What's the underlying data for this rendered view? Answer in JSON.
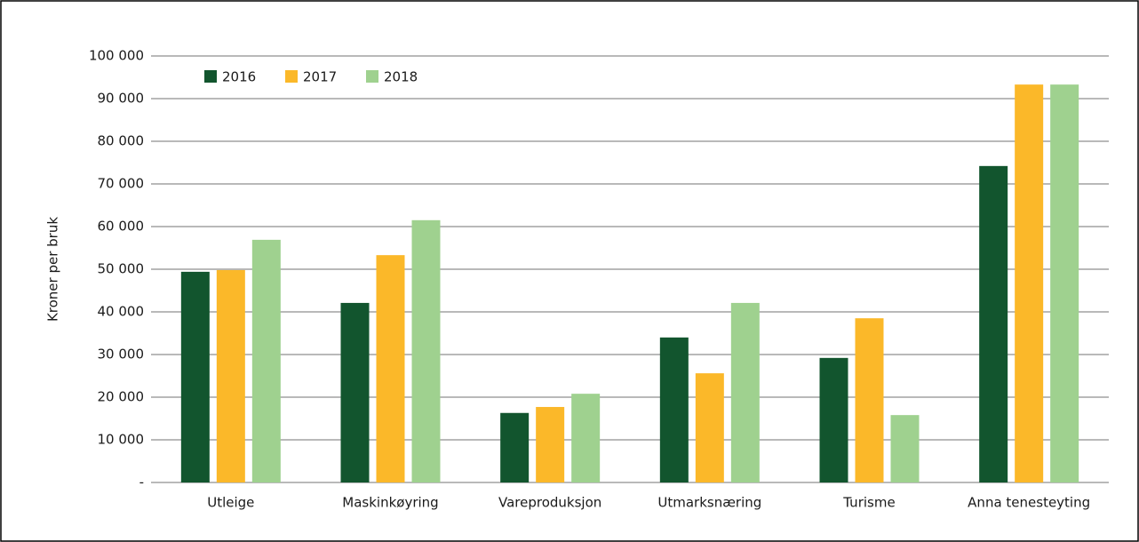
{
  "chart_data": {
    "type": "bar",
    "y_label": "Kroner per bruk",
    "categories": [
      "Utleige",
      "Maskinkøyring",
      "Vareproduksjon",
      "Utmarksnæring",
      "Turisme",
      "Anna tenesteyting"
    ],
    "series": [
      {
        "name": "2016",
        "color": "#12552e",
        "values": [
          49400,
          42100,
          16300,
          34000,
          29200,
          74200
        ]
      },
      {
        "name": "2017",
        "color": "#fbb829",
        "values": [
          49800,
          53300,
          17700,
          25600,
          38500,
          93300
        ]
      },
      {
        "name": "2018",
        "color": "#9fd18f",
        "values": [
          56900,
          61500,
          20800,
          42100,
          15800,
          93300
        ]
      }
    ],
    "ylim": [
      0,
      100000
    ],
    "yticks": [
      {
        "value": 0,
        "label": "-"
      },
      {
        "value": 10000,
        "label": "10 000"
      },
      {
        "value": 20000,
        "label": "20 000"
      },
      {
        "value": 30000,
        "label": "30 000"
      },
      {
        "value": 40000,
        "label": "40 000"
      },
      {
        "value": 50000,
        "label": "50 000"
      },
      {
        "value": 60000,
        "label": "60 000"
      },
      {
        "value": 70000,
        "label": "70 000"
      },
      {
        "value": 80000,
        "label": "80 000"
      },
      {
        "value": 90000,
        "label": "90 000"
      },
      {
        "value": 100000,
        "label": "100 000"
      }
    ],
    "grid": true,
    "legend": "top-left"
  }
}
